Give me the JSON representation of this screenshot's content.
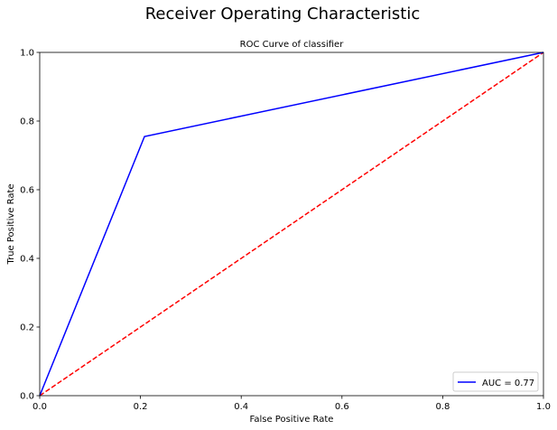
{
  "figure": {
    "suptitle": "Receiver Operating Characteristic"
  },
  "chart_data": {
    "type": "line",
    "title": "ROC Curve of classifier",
    "xlabel": "False Positive Rate",
    "ylabel": "True Positive Rate",
    "xlim": [
      0,
      1
    ],
    "ylim": [
      0,
      1
    ],
    "x_ticks": [
      0.0,
      0.2,
      0.4,
      0.6,
      0.8,
      1.0
    ],
    "y_ticks": [
      0.0,
      0.2,
      0.4,
      0.6,
      0.8,
      1.0
    ],
    "x_tick_labels": [
      "0.0",
      "0.2",
      "0.4",
      "0.6",
      "0.8",
      "1.0"
    ],
    "y_tick_labels": [
      "0.0",
      "0.2",
      "0.4",
      "0.6",
      "0.8",
      "1.0"
    ],
    "grid": false,
    "legend_position": "lower-right",
    "series": [
      {
        "name": "AUC = 0.77",
        "color": "#0000ff",
        "style": "solid",
        "x": [
          0.0,
          0.208,
          1.0
        ],
        "y": [
          0.0,
          0.755,
          1.0
        ]
      },
      {
        "color": "#ff0000",
        "style": "dashed",
        "x": [
          0.0,
          1.0
        ],
        "y": [
          0.0,
          1.0
        ]
      }
    ]
  }
}
